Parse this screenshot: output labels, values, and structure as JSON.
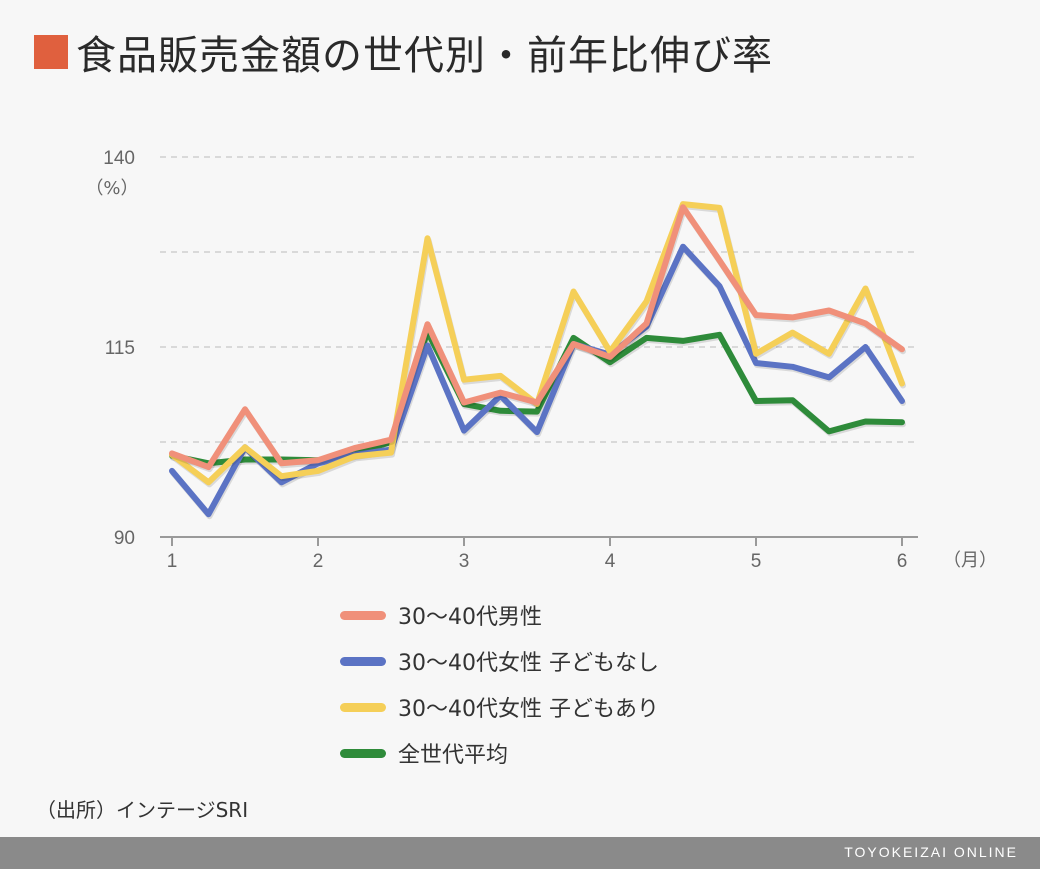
{
  "title": "食品販売金額の世代別・前年比伸び率",
  "accent_color": "#e0603e",
  "source": "（出所）インテージSRI",
  "brand": "TOYOKEIZAI ONLINE",
  "chart_data": {
    "type": "line",
    "title": "食品販売金額の世代別・前年比伸び率",
    "ylabel": "（%）",
    "xlabel": "（月）",
    "ylim": [
      90,
      140
    ],
    "xlim": [
      1,
      6
    ],
    "y_ticks": [
      90,
      115,
      140
    ],
    "y_gridlines": [
      102.5,
      115,
      127.5,
      140
    ],
    "x_ticks": [
      {
        "value": 1,
        "label": "1"
      },
      {
        "value": 2,
        "label": "2"
      },
      {
        "value": 3,
        "label": "3"
      },
      {
        "value": 4,
        "label": "4"
      },
      {
        "value": 5,
        "label": "5"
      },
      {
        "value": 6,
        "label": "6"
      }
    ],
    "x": [
      1,
      1.25,
      1.5,
      1.75,
      2,
      2.25,
      2.5,
      2.75,
      3,
      3.25,
      3.5,
      3.75,
      4,
      4.25,
      4.5,
      4.75,
      5,
      5.25,
      5.5,
      5.75,
      6
    ],
    "grid": true,
    "legend_position": "bottom",
    "series": [
      {
        "name": "30〜40代男性",
        "color": "#f0907a",
        "values": [
          101.0,
          99.2,
          106.8,
          99.7,
          100.1,
          101.7,
          102.8,
          118.0,
          107.7,
          109.0,
          107.7,
          115.4,
          113.7,
          118.1,
          133.4,
          126.4,
          119.2,
          118.9,
          119.8,
          118.1,
          114.7
        ]
      },
      {
        "name": "30〜40代女性 子どもなし",
        "color": "#5b73c4",
        "values": [
          98.7,
          93.0,
          101.8,
          97.2,
          99.7,
          100.8,
          101.5,
          115.2,
          104.0,
          108.6,
          103.8,
          115.4,
          114.0,
          117.7,
          128.2,
          123.0,
          112.9,
          112.4,
          111.0,
          115.0,
          107.9
        ]
      },
      {
        "name": "30〜40代女性 子どもあり",
        "color": "#f5cf58",
        "values": [
          100.8,
          97.2,
          101.8,
          98.0,
          98.7,
          100.6,
          101.1,
          129.3,
          110.7,
          111.2,
          107.5,
          122.3,
          114.4,
          121.0,
          133.8,
          133.3,
          114.1,
          116.9,
          114.1,
          122.7,
          110.2
        ]
      },
      {
        "name": "全世代平均",
        "color": "#2e8b3a",
        "values": [
          100.7,
          99.7,
          100.2,
          100.2,
          100.1,
          101.0,
          102.5,
          117.0,
          107.5,
          106.6,
          106.5,
          116.2,
          113.0,
          116.2,
          115.8,
          116.6,
          107.9,
          108.0,
          103.9,
          105.2,
          105.1
        ]
      }
    ]
  }
}
